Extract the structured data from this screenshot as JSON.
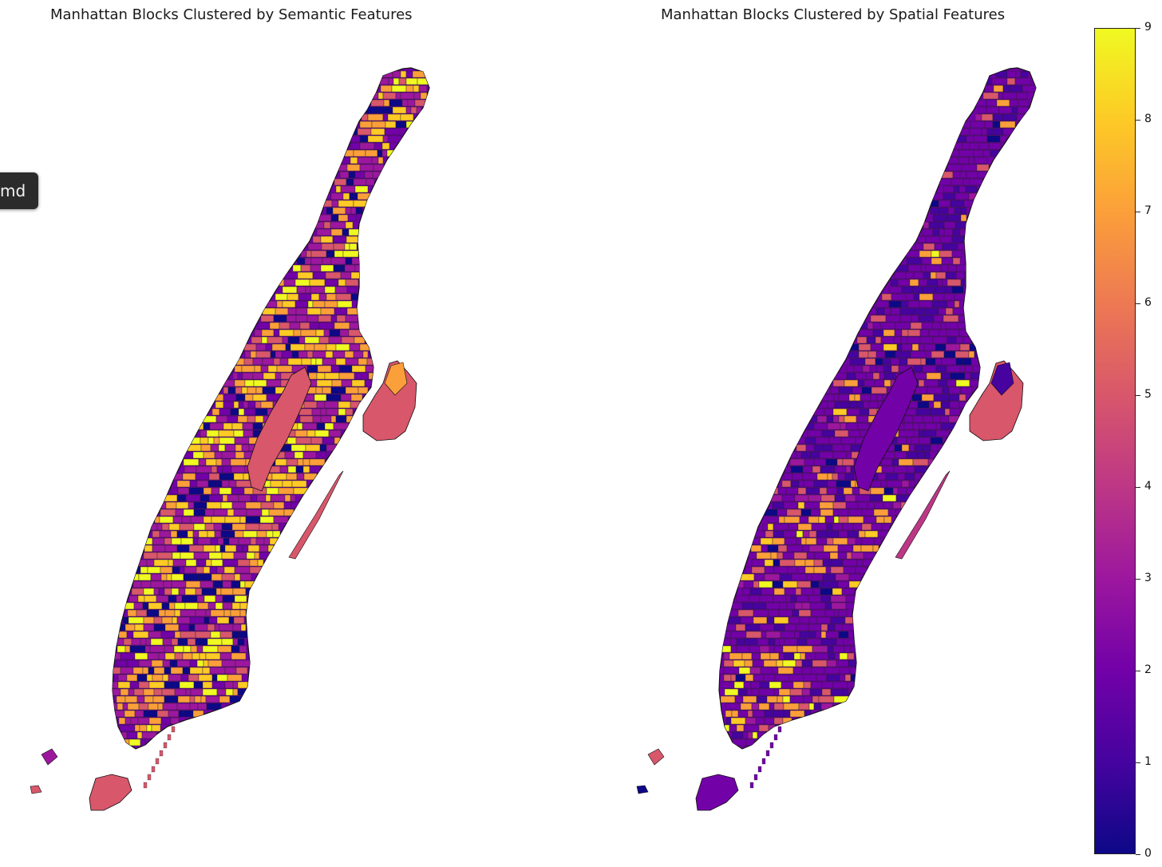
{
  "panels": [
    {
      "title": "Manhattan Blocks Clustered by Semantic Features",
      "scheme": "semantic"
    },
    {
      "title": "Manhattan Blocks Clustered by Spatial Features",
      "scheme": "spatial"
    }
  ],
  "tooltip": {
    "text": "md"
  },
  "colorbar": {
    "colormap": "plasma",
    "range": [
      0,
      9
    ],
    "ticks": [
      "0",
      "1",
      "2",
      "3",
      "4",
      "5",
      "6",
      "7",
      "8",
      "9"
    ],
    "stops": [
      "#0d0887",
      "#46039f",
      "#7201a8",
      "#9c179e",
      "#bd3786",
      "#d8576b",
      "#ed7953",
      "#fb9f3a",
      "#fdca26",
      "#f0f921"
    ]
  }
}
